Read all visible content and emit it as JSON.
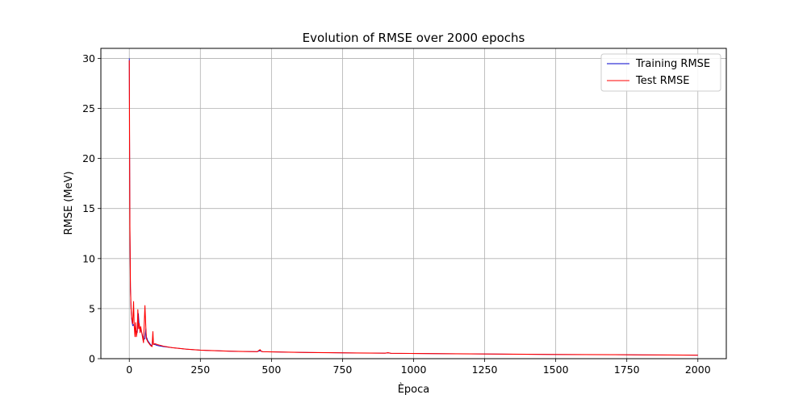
{
  "chart_data": {
    "type": "line",
    "title": "Evolution of RMSE over 2000 epochs",
    "xlabel": "Època",
    "ylabel": "RMSE (MeV)",
    "xlim": [
      -100,
      2100
    ],
    "ylim": [
      0,
      31
    ],
    "xticks": [
      0,
      250,
      500,
      750,
      1000,
      1250,
      1500,
      1750,
      2000
    ],
    "yticks": [
      0,
      5,
      10,
      15,
      20,
      25,
      30
    ],
    "grid": true,
    "legend_position": "top-right",
    "series": [
      {
        "name": "Training RMSE",
        "color": "#0000cc",
        "x": [
          0,
          2,
          4,
          6,
          8,
          10,
          12,
          15,
          18,
          20,
          22,
          25,
          28,
          30,
          32,
          35,
          38,
          40,
          45,
          50,
          55,
          58,
          60,
          65,
          70,
          75,
          80,
          83,
          85,
          90,
          100,
          120,
          150,
          200,
          250,
          300,
          350,
          400,
          450,
          460,
          465,
          470,
          500,
          600,
          700,
          800,
          900,
          910,
          920,
          1000,
          1100,
          1200,
          1300,
          1400,
          1500,
          1600,
          1700,
          1800,
          1900,
          2000
        ],
        "y": [
          30.0,
          14.0,
          7.0,
          5.0,
          4.0,
          3.6,
          3.3,
          3.4,
          3.2,
          2.5,
          3.0,
          2.7,
          2.6,
          3.3,
          4.5,
          3.2,
          3.0,
          2.9,
          2.5,
          1.9,
          2.0,
          3.0,
          2.2,
          1.8,
          1.6,
          1.4,
          1.3,
          2.2,
          1.5,
          1.4,
          1.3,
          1.2,
          1.1,
          0.95,
          0.85,
          0.8,
          0.75,
          0.72,
          0.7,
          0.8,
          0.72,
          0.7,
          0.68,
          0.63,
          0.6,
          0.57,
          0.55,
          0.58,
          0.54,
          0.52,
          0.5,
          0.48,
          0.46,
          0.44,
          0.42,
          0.41,
          0.4,
          0.38,
          0.37,
          0.35
        ]
      },
      {
        "name": "Test RMSE",
        "color": "#ff0000",
        "x": [
          0,
          2,
          4,
          6,
          8,
          10,
          12,
          15,
          17,
          20,
          22,
          25,
          28,
          30,
          33,
          35,
          38,
          40,
          45,
          50,
          55,
          58,
          60,
          65,
          70,
          75,
          80,
          83,
          85,
          90,
          100,
          120,
          150,
          200,
          250,
          300,
          350,
          400,
          450,
          460,
          465,
          470,
          500,
          600,
          700,
          800,
          900,
          910,
          920,
          1000,
          1100,
          1200,
          1300,
          1400,
          1500,
          1600,
          1700,
          1800,
          1900,
          2000
        ],
        "y": [
          29.8,
          13.5,
          7.2,
          5.2,
          4.2,
          3.8,
          3.5,
          5.7,
          3.4,
          2.2,
          3.6,
          2.2,
          2.8,
          4.9,
          3.0,
          3.5,
          2.6,
          3.2,
          2.4,
          1.6,
          5.3,
          3.2,
          2.0,
          1.7,
          1.5,
          1.3,
          1.2,
          2.7,
          1.4,
          1.5,
          1.4,
          1.25,
          1.1,
          0.95,
          0.85,
          0.8,
          0.75,
          0.72,
          0.7,
          0.9,
          0.72,
          0.7,
          0.68,
          0.63,
          0.6,
          0.57,
          0.55,
          0.6,
          0.54,
          0.52,
          0.5,
          0.48,
          0.46,
          0.44,
          0.42,
          0.41,
          0.4,
          0.38,
          0.37,
          0.35
        ]
      }
    ]
  }
}
